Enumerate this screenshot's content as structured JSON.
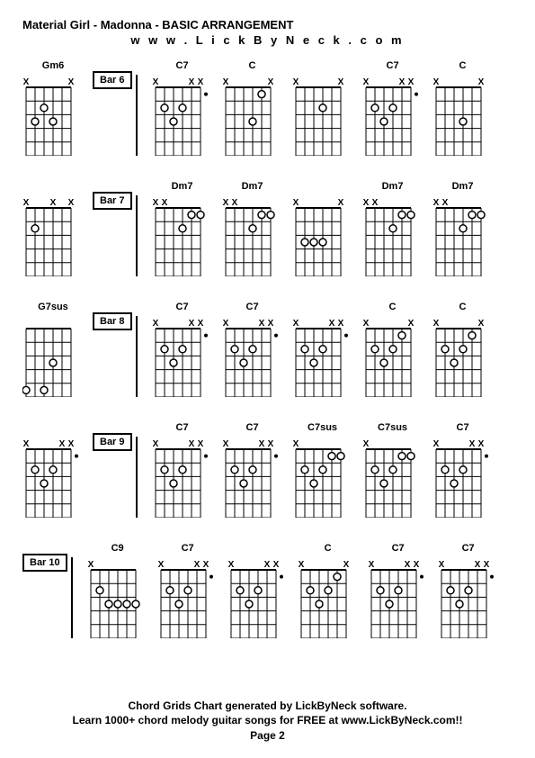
{
  "title": "Material Girl - Madonna - BASIC ARRANGEMENT",
  "website": "w w w . L i c k B y N e c k . c o m",
  "footer_line1": "Chord Grids Chart generated by LickByNeck software.",
  "footer_line2": "Learn 1000+ chord melody guitar songs for FREE at www.LickByNeck.com!!",
  "footer_line3": "Page 2",
  "grid": {
    "width": 58,
    "height": 90,
    "strings": 6,
    "frets": 5,
    "dot_radius": 4,
    "colors": {
      "line": "#000000",
      "dot_fill": "#ffffff",
      "dot_stroke": "#000000",
      "x_color": "#000000"
    }
  },
  "rows": [
    {
      "chords": [
        {
          "name": "Gm6",
          "markers": [
            "x",
            "",
            "",
            "",
            "",
            "x"
          ],
          "dots": [
            [
              3,
              2
            ],
            [
              2,
              3
            ],
            [
              4,
              3
            ]
          ]
        },
        {
          "bar": "Bar 6"
        },
        {
          "name": "C7",
          "markers": [
            "x",
            "",
            "",
            "",
            "x",
            "x"
          ],
          "dots": [
            [
              2,
              2
            ],
            [
              4,
              2
            ],
            [
              3,
              3
            ]
          ],
          "dotsRight": 1
        },
        {
          "name": "C",
          "markers": [
            "x",
            "",
            "",
            "",
            "",
            "x"
          ],
          "dots": [
            [
              5,
              1
            ],
            [
              4,
              3
            ]
          ]
        },
        {
          "name": "",
          "markers": [
            "x",
            "",
            "",
            "",
            "",
            "x"
          ],
          "dots": [
            [
              4,
              2
            ]
          ]
        },
        {
          "name": "C7",
          "markers": [
            "x",
            "",
            "",
            "",
            "x",
            "x"
          ],
          "dots": [
            [
              2,
              2
            ],
            [
              4,
              2
            ],
            [
              3,
              3
            ]
          ],
          "dotsRight": 1
        },
        {
          "name": "C",
          "markers": [
            "x",
            "",
            "",
            "",
            "",
            "x"
          ],
          "dots": [
            [
              4,
              3
            ]
          ]
        }
      ]
    },
    {
      "chords": [
        {
          "name": "",
          "markers": [
            "x",
            "",
            "",
            "x",
            "",
            "x"
          ],
          "dots": [
            [
              2,
              2
            ]
          ]
        },
        {
          "bar": "Bar 7"
        },
        {
          "name": "Dm7",
          "markers": [
            "x",
            "x",
            "",
            "",
            "",
            ""
          ],
          "dots": [
            [
              5,
              1
            ],
            [
              6,
              1
            ],
            [
              4,
              2
            ]
          ]
        },
        {
          "name": "Dm7",
          "markers": [
            "x",
            "x",
            "",
            "",
            "",
            ""
          ],
          "dots": [
            [
              5,
              1
            ],
            [
              6,
              1
            ],
            [
              4,
              2
            ]
          ]
        },
        {
          "name": "",
          "markers": [
            "x",
            "",
            "",
            "",
            "",
            "x"
          ],
          "dots": [
            [
              2,
              3
            ],
            [
              3,
              3
            ],
            [
              4,
              3
            ]
          ]
        },
        {
          "name": "Dm7",
          "markers": [
            "x",
            "x",
            "",
            "",
            "",
            ""
          ],
          "dots": [
            [
              5,
              1
            ],
            [
              6,
              1
            ],
            [
              4,
              2
            ]
          ]
        },
        {
          "name": "Dm7",
          "markers": [
            "x",
            "x",
            "",
            "",
            "",
            ""
          ],
          "dots": [
            [
              5,
              1
            ],
            [
              6,
              1
            ],
            [
              4,
              2
            ]
          ]
        }
      ]
    },
    {
      "chords": [
        {
          "name": "G7sus",
          "markers": [
            "",
            "",
            "",
            "",
            "",
            ""
          ],
          "dots": [
            [
              4,
              3
            ],
            [
              1,
              5
            ],
            [
              3,
              5
            ]
          ]
        },
        {
          "bar": "Bar 8"
        },
        {
          "name": "C7",
          "markers": [
            "x",
            "",
            "",
            "",
            "x",
            "x"
          ],
          "dots": [
            [
              2,
              2
            ],
            [
              4,
              2
            ],
            [
              3,
              3
            ]
          ],
          "dotsRight": 1
        },
        {
          "name": "C7",
          "markers": [
            "x",
            "",
            "",
            "",
            "x",
            "x"
          ],
          "dots": [
            [
              2,
              2
            ],
            [
              4,
              2
            ],
            [
              3,
              3
            ]
          ],
          "dotsRight": 1
        },
        {
          "name": "",
          "markers": [
            "x",
            "",
            "",
            "",
            "x",
            "x"
          ],
          "dots": [
            [
              2,
              2
            ],
            [
              4,
              2
            ],
            [
              3,
              3
            ]
          ],
          "dotsRight": 1
        },
        {
          "name": "C",
          "markers": [
            "x",
            "",
            "",
            "",
            "",
            "x"
          ],
          "dots": [
            [
              5,
              1
            ],
            [
              2,
              2
            ],
            [
              4,
              2
            ],
            [
              3,
              3
            ]
          ]
        },
        {
          "name": "C",
          "markers": [
            "x",
            "",
            "",
            "",
            "",
            "x"
          ],
          "dots": [
            [
              5,
              1
            ],
            [
              2,
              2
            ],
            [
              4,
              2
            ],
            [
              3,
              3
            ]
          ]
        }
      ]
    },
    {
      "chords": [
        {
          "name": "",
          "markers": [
            "x",
            "",
            "",
            "",
            "x",
            "x"
          ],
          "dots": [
            [
              2,
              2
            ],
            [
              4,
              2
            ],
            [
              3,
              3
            ]
          ],
          "dotsRight": 1
        },
        {
          "bar": "Bar 9"
        },
        {
          "name": "C7",
          "markers": [
            "x",
            "",
            "",
            "",
            "x",
            "x"
          ],
          "dots": [
            [
              2,
              2
            ],
            [
              4,
              2
            ],
            [
              3,
              3
            ]
          ],
          "dotsRight": 1
        },
        {
          "name": "C7",
          "markers": [
            "x",
            "",
            "",
            "",
            "x",
            "x"
          ],
          "dots": [
            [
              2,
              2
            ],
            [
              4,
              2
            ],
            [
              3,
              3
            ]
          ],
          "dotsRight": 1
        },
        {
          "name": "C7sus",
          "markers": [
            "x",
            "",
            "",
            "",
            "",
            ""
          ],
          "dots": [
            [
              5,
              1
            ],
            [
              6,
              1
            ],
            [
              2,
              2
            ],
            [
              4,
              2
            ],
            [
              3,
              3
            ]
          ]
        },
        {
          "name": "C7sus",
          "markers": [
            "x",
            "",
            "",
            "",
            "",
            ""
          ],
          "dots": [
            [
              5,
              1
            ],
            [
              6,
              1
            ],
            [
              2,
              2
            ],
            [
              4,
              2
            ],
            [
              3,
              3
            ]
          ]
        },
        {
          "name": "C7",
          "markers": [
            "x",
            "",
            "",
            "",
            "x",
            "x"
          ],
          "dots": [
            [
              2,
              2
            ],
            [
              4,
              2
            ],
            [
              3,
              3
            ]
          ],
          "dotsRight": 1
        }
      ]
    },
    {
      "chords": [
        {
          "bar": "Bar 10"
        },
        {
          "name": "C9",
          "markers": [
            "x",
            "",
            "",
            "",
            "",
            ""
          ],
          "dots": [
            [
              2,
              2
            ],
            [
              3,
              3
            ],
            [
              4,
              3
            ],
            [
              5,
              3
            ],
            [
              6,
              3
            ]
          ]
        },
        {
          "name": "C7",
          "markers": [
            "x",
            "",
            "",
            "",
            "x",
            "x"
          ],
          "dots": [
            [
              2,
              2
            ],
            [
              4,
              2
            ],
            [
              3,
              3
            ]
          ],
          "dotsRight": 1
        },
        {
          "name": "",
          "markers": [
            "x",
            "",
            "",
            "",
            "x",
            "x"
          ],
          "dots": [
            [
              2,
              2
            ],
            [
              4,
              2
            ],
            [
              3,
              3
            ]
          ],
          "dotsRight": 1
        },
        {
          "name": "C",
          "markers": [
            "x",
            "",
            "",
            "",
            "",
            "x"
          ],
          "dots": [
            [
              5,
              1
            ],
            [
              2,
              2
            ],
            [
              4,
              2
            ],
            [
              3,
              3
            ]
          ]
        },
        {
          "name": "C7",
          "markers": [
            "x",
            "",
            "",
            "",
            "x",
            "x"
          ],
          "dots": [
            [
              2,
              2
            ],
            [
              4,
              2
            ],
            [
              3,
              3
            ]
          ],
          "dotsRight": 1
        },
        {
          "name": "C7",
          "markers": [
            "x",
            "",
            "",
            "",
            "x",
            "x"
          ],
          "dots": [
            [
              2,
              2
            ],
            [
              4,
              2
            ],
            [
              3,
              3
            ]
          ],
          "dotsRight": 1
        }
      ]
    }
  ]
}
